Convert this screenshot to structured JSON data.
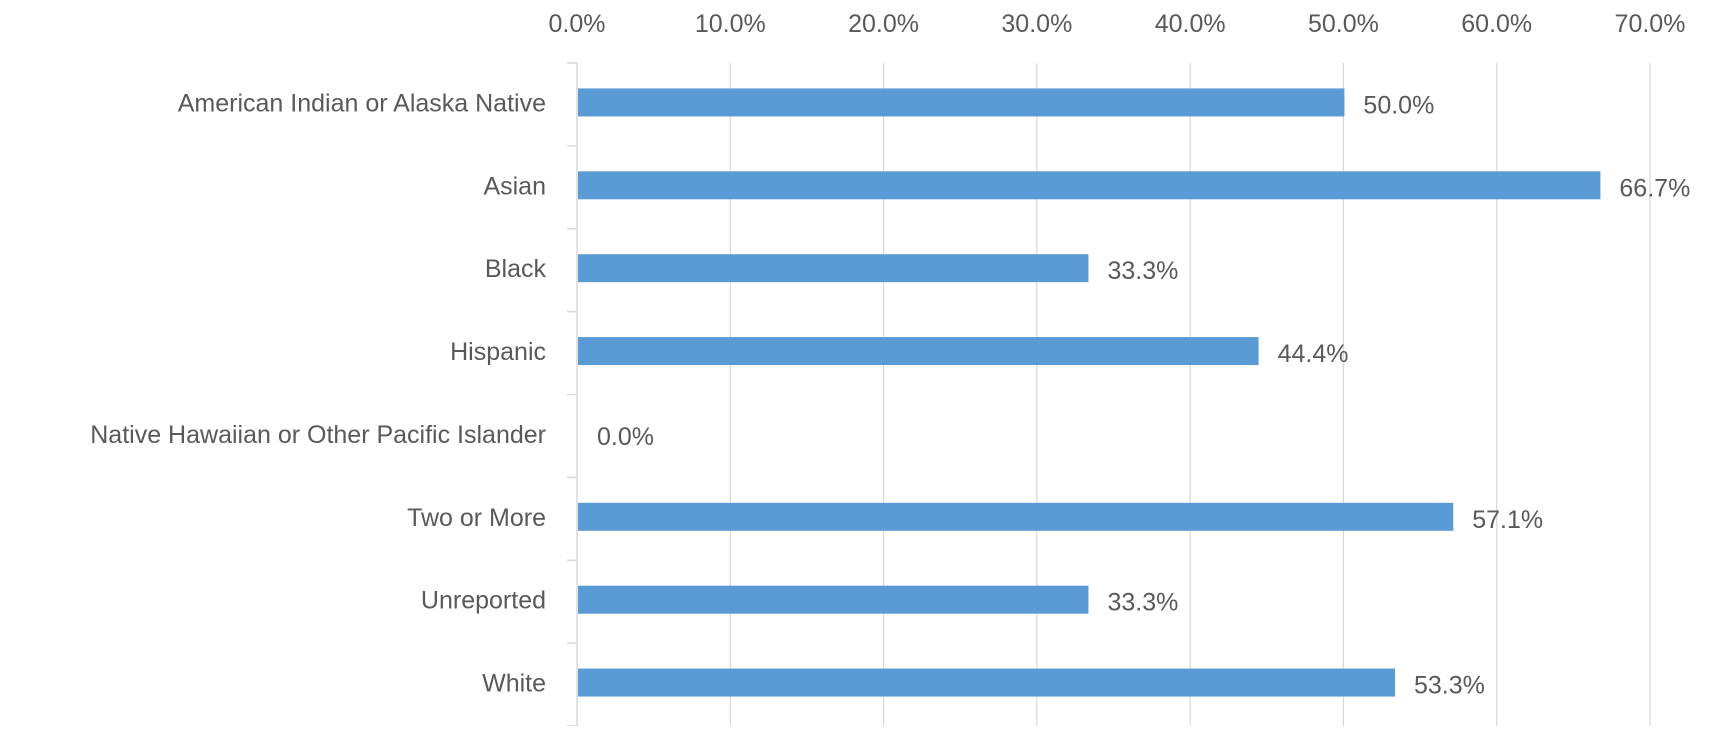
{
  "chart_data": {
    "type": "bar",
    "orientation": "horizontal",
    "categories": [
      "American Indian or Alaska Native",
      "Asian",
      "Black",
      "Hispanic",
      "Native Hawaiian or Other Pacific Islander",
      "Two or More",
      "Unreported",
      "White"
    ],
    "series": [
      {
        "values": [
          50.0,
          66.7,
          33.3,
          44.4,
          0.0,
          57.1,
          33.3,
          53.3
        ],
        "data_labels": [
          "50.0%",
          "66.7%",
          "33.3%",
          "44.4%",
          "0.0%",
          "57.1%",
          "33.3%",
          "53.3%"
        ],
        "color": "#5B9BD5"
      }
    ],
    "value_axis": {
      "range": [
        0,
        70
      ],
      "ticks": [
        0,
        10,
        20,
        30,
        40,
        50,
        60,
        70
      ],
      "tick_labels": [
        "0.0%",
        "10.0%",
        "20.0%",
        "30.0%",
        "40.0%",
        "50.0%",
        "60.0%",
        "70.0%"
      ],
      "position": "top"
    },
    "title": "",
    "xlabel": "",
    "ylabel": "",
    "grid": true,
    "legend": "none",
    "colors": {
      "bar": "#5B9BD5",
      "gridline": "#D9D9D9",
      "text": "#595959"
    }
  }
}
